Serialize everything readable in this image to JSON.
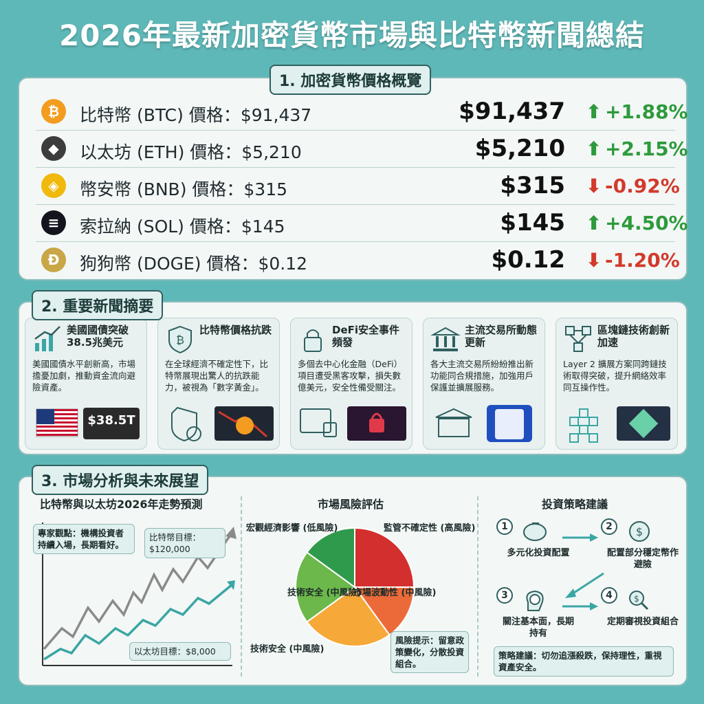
{
  "title": "2026年最新加密貨幣市場與比特幣新聞總結",
  "sections": {
    "prices": "1. 加密貨幣價格概覽",
    "news": "2. 重要新聞摘要",
    "analysis": "3. 市場分析與未來展望"
  },
  "prices": [
    {
      "label": "比特幣 (BTC) 價格：$91,437",
      "price": "$91,437",
      "change": "+1.88%",
      "direction": "up",
      "symbol": "₿",
      "color": "#f39c1f",
      "icon": "bitcoin-icon"
    },
    {
      "label": "以太坊 (ETH) 價格：$5,210",
      "price": "$5,210",
      "change": "+2.15%",
      "direction": "up",
      "symbol": "◆",
      "color": "#3c3c3d",
      "icon": "ethereum-icon"
    },
    {
      "label": "幣安幣 (BNB) 價格：$315",
      "price": "$315",
      "change": "-0.92%",
      "direction": "down",
      "symbol": "◈",
      "color": "#f0b90b",
      "icon": "bnb-icon"
    },
    {
      "label": "索拉納 (SOL) 價格：$145",
      "price": "$145",
      "change": "+4.50%",
      "direction": "up",
      "symbol": "≡",
      "color": "#14141e",
      "icon": "solana-icon"
    },
    {
      "label": "狗狗幣 (DOGE) 價格：$0.12",
      "price": "$0.12",
      "change": "-1.20%",
      "direction": "down",
      "symbol": "Ð",
      "color": "#c9a646",
      "icon": "dogecoin-icon"
    }
  ],
  "arrows": {
    "up": "⬆",
    "down": "⬇"
  },
  "news": [
    {
      "title": "美國國債突破38.5兆美元",
      "text": "美國國債水平創新高，市場擔憂加劇，推動資金流向避險資產。",
      "art": "$38.5T",
      "icon": "growth-chart-icon"
    },
    {
      "title": "比特幣價格抗跌",
      "text": "在全球經濟不確定性下，比特幣展現出驚人的抗跌能力，被視為「數字黃金」。",
      "art": "",
      "icon": "bitcoin-shield-icon"
    },
    {
      "title": "DeFi安全事件頻發",
      "text": "多個去中心化金融（DeFi）項目遭受黑客攻擊，損失數億美元，安全性備受關注。",
      "art": "",
      "icon": "padlock-icon"
    },
    {
      "title": "主流交易所動態更新",
      "text": "各大主流交易所紛紛推出新功能同合規措施，加強用戶保護並擴展服務。",
      "art": "",
      "icon": "exchange-building-icon"
    },
    {
      "title": "區塊鏈技術創新加速",
      "text": "Layer 2 擴展方案同跨鏈技術取得突破，提升網絡效率同互操作性。",
      "art": "",
      "icon": "blockchain-icon"
    }
  ],
  "analysis": {
    "trend_title": "比特幣與以太坊2026年走勢預測",
    "expert_note": "專家觀點：機構投資者持續入場，長期看好。",
    "btc_target": "比特幣目標：$120,000",
    "eth_target": "以太坊目標：$8,000",
    "risk_title": "市場風險評估",
    "risk_note": "風險提示：留意政策變化，分散投資組合。",
    "strategy_title": "投資策略建議",
    "strategy_note": "策略建議：切勿追漲殺跌，保持理性，重視資產安全。",
    "steps": [
      {
        "num": "1",
        "label": "多元化投資配置",
        "icon": "piggy-bank-icon"
      },
      {
        "num": "2",
        "label": "配置部分穩定幣作避險",
        "icon": "dollar-coin-icon"
      },
      {
        "num": "3",
        "label": "關注基本面，長期持有",
        "icon": "head-clock-icon"
      },
      {
        "num": "4",
        "label": "定期審視投資組合",
        "icon": "magnifier-dollar-icon"
      }
    ]
  },
  "chart_data": {
    "type": "pie",
    "title": "市場風險評估",
    "categories": [
      "監管不確定性 (高風險)",
      "市場波動性 (中風險)",
      "技術安全 (中風險)",
      "技術安全 (中風險)",
      "宏觀經濟影響 (低風險)"
    ],
    "values": [
      25,
      15,
      25,
      20,
      15
    ],
    "colors": [
      "#d42f2f",
      "#ec6a3a",
      "#f6a838",
      "#6cb84a",
      "#2f9a4c"
    ]
  }
}
